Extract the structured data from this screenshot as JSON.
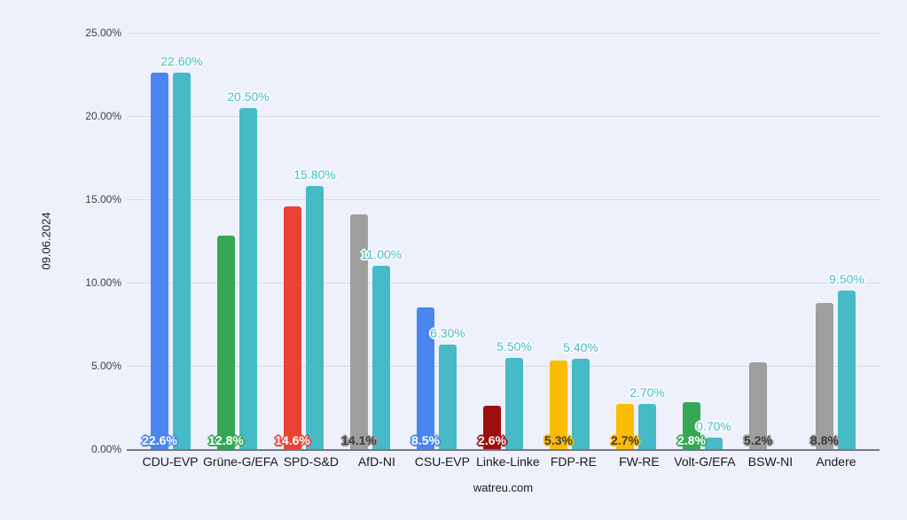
{
  "chart_data": {
    "type": "bar",
    "y_axis_title": "09.06.2024",
    "footer": "watreu.com",
    "categories": [
      "CDU-EVP",
      "Grüne-G/EFA",
      "SPD-S&D",
      "AfD-NI",
      "CSU-EVP",
      "Linke-Linke",
      "FDP-RE",
      "FW-RE",
      "Volt-G/EFA",
      "BSW-NI",
      "Andere"
    ],
    "series": [
      {
        "values": [
          22.6,
          12.8,
          14.6,
          14.1,
          8.5,
          2.6,
          5.3,
          2.7,
          2.8,
          5.2,
          8.8
        ],
        "value_labels": [
          "22.6%",
          "12.8%",
          "14.6%",
          "14.1%",
          "8.5%",
          "2.6%",
          "5.3%",
          "2.7%",
          "2.8%",
          "5.2%",
          "8.8%"
        ],
        "bar_colors": [
          "#4b85f0",
          "#34a853",
          "#ea4335",
          "#9e9e9e",
          "#4b85f0",
          "#9c0f0f",
          "#fbbc04",
          "#fbbc04",
          "#34a853",
          "#9e9e9e",
          "#9e9e9e"
        ],
        "value_label_tones": [
          "light",
          "light",
          "light",
          "dark",
          "light",
          "light",
          "dark",
          "dark",
          "light",
          "dark",
          "dark"
        ]
      },
      {
        "values": [
          22.6,
          20.5,
          15.8,
          11.0,
          6.3,
          5.5,
          5.4,
          2.7,
          0.7,
          null,
          9.5
        ],
        "value_labels": [
          "22.60%",
          "20.50%",
          "15.80%",
          "11.00%",
          "6.30%",
          "5.50%",
          "5.40%",
          "2.70%",
          "0.70%",
          null,
          "9.50%"
        ],
        "bar_color": "#46bac6"
      }
    ],
    "y_ticks": [
      "25.00%",
      "20.00%",
      "15.00%",
      "10.00%",
      "5.00%",
      "0.00%"
    ],
    "ylim": [
      0,
      25
    ],
    "grid": true,
    "legend": "none",
    "colors": {
      "background": "#eef1fc",
      "gridline": "#d5d9e2",
      "axis_line": "#75797e",
      "teal": "#46bac6",
      "teal_label_text": "#46bac6",
      "tick_text": "#3c4043",
      "label_text": "#1a1a1a"
    }
  }
}
